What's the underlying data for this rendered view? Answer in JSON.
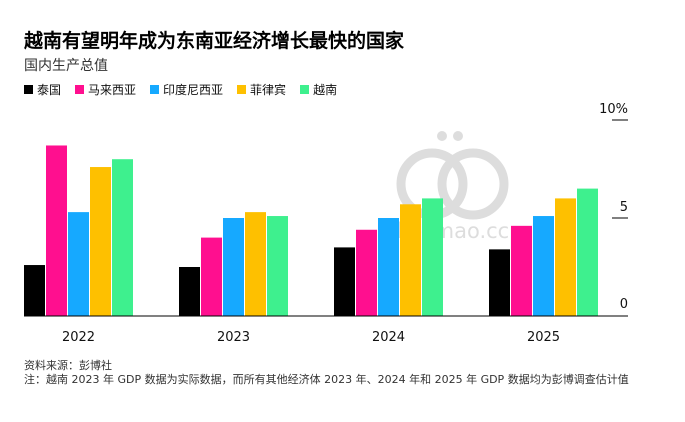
{
  "title": "越南有望明年成为东南亚经济增长最快的国家",
  "subtitle": "国内生产总值",
  "source": "资料来源：彭博社",
  "note": "注：越南 2023 年 GDP 数据为实际数据，而所有其他经济体 2023 年、2024 年和 2025 年 GDP 数据均为彭博调查估计值",
  "watermark": "diaomao.cc",
  "chart_data": {
    "type": "bar",
    "categories": [
      "2022",
      "2023",
      "2024",
      "2025"
    ],
    "series": [
      {
        "name": "泰国",
        "color": "#000000",
        "values": [
          2.6,
          2.5,
          3.5,
          3.4
        ]
      },
      {
        "name": "马来西亚",
        "color": "#ff0f8f",
        "values": [
          8.7,
          4.0,
          4.4,
          4.6
        ]
      },
      {
        "name": "印度尼西亚",
        "color": "#16a9ff",
        "values": [
          5.3,
          5.0,
          5.0,
          5.1
        ]
      },
      {
        "name": "菲律宾",
        "color": "#fec000",
        "values": [
          7.6,
          5.3,
          5.7,
          6.0
        ]
      },
      {
        "name": "越南",
        "color": "#3ef08e",
        "values": [
          8.0,
          5.1,
          6.0,
          6.5
        ]
      }
    ],
    "ylim": [
      0,
      10
    ],
    "yticks": [
      {
        "value": 0,
        "label": "0"
      },
      {
        "value": 5,
        "label": "5"
      },
      {
        "value": 10,
        "label": "10%"
      }
    ],
    "grid": false,
    "legend_position": "top-left"
  }
}
